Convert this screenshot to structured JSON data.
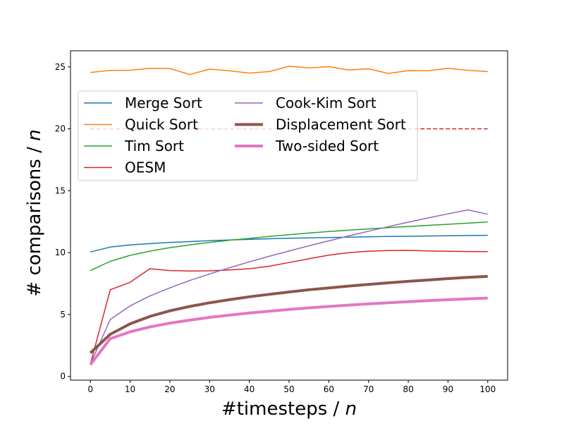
{
  "chart_data": {
    "type": "line",
    "xlabel_prefix": "#timesteps / ",
    "xlabel_var": "n",
    "ylabel_prefix": "# comparisons / ",
    "ylabel_var": "n",
    "xlim": [
      -5,
      105
    ],
    "ylim": [
      -0.3,
      26.3
    ],
    "xticks": [
      0,
      10,
      20,
      30,
      40,
      50,
      60,
      70,
      80,
      90,
      100
    ],
    "yticks": [
      0,
      5,
      10,
      15,
      20,
      25
    ],
    "grid": false,
    "legend_placement": "upper-left",
    "legend_columns": 2,
    "x": [
      0,
      5,
      10,
      15,
      20,
      25,
      30,
      35,
      40,
      45,
      50,
      55,
      60,
      65,
      70,
      75,
      80,
      85,
      90,
      95,
      100
    ],
    "series": [
      {
        "name": "Merge Sort",
        "color": "#1f77b4",
        "width": 1.5,
        "values": [
          10.05,
          10.45,
          10.62,
          10.73,
          10.82,
          10.89,
          10.96,
          11.02,
          11.07,
          11.12,
          11.16,
          11.19,
          11.22,
          11.25,
          11.28,
          11.3,
          11.32,
          11.34,
          11.36,
          11.38,
          11.4
        ]
      },
      {
        "name": "Quick Sort",
        "color": "#ff7f0e",
        "width": 1.5,
        "values": [
          24.55,
          24.72,
          24.73,
          24.88,
          24.87,
          24.38,
          24.82,
          24.68,
          24.5,
          24.62,
          25.05,
          24.92,
          25.02,
          24.75,
          24.85,
          24.47,
          24.7,
          24.68,
          24.88,
          24.72,
          24.62
        ]
      },
      {
        "name": "Tim Sort",
        "color": "#2ca02c",
        "width": 1.5,
        "values": [
          8.55,
          9.3,
          9.78,
          10.12,
          10.4,
          10.62,
          10.82,
          11.0,
          11.15,
          11.3,
          11.45,
          11.58,
          11.7,
          11.81,
          11.92,
          12.02,
          12.11,
          12.2,
          12.29,
          12.38,
          12.47
        ]
      },
      {
        "name": "OESM",
        "color": "#d62728",
        "width": 1.5,
        "values": [
          1.0,
          7.0,
          7.6,
          8.7,
          8.55,
          8.52,
          8.53,
          8.6,
          8.7,
          8.9,
          9.2,
          9.5,
          9.8,
          10.0,
          10.12,
          10.17,
          10.18,
          10.14,
          10.11,
          10.09,
          10.08
        ]
      },
      {
        "name": "Cook-Kim Sort",
        "color": "#9467bd",
        "width": 1.5,
        "values": [
          1.0,
          4.6,
          5.7,
          6.5,
          7.15,
          7.75,
          8.28,
          8.78,
          9.25,
          9.7,
          10.13,
          10.55,
          10.95,
          11.35,
          11.73,
          12.1,
          12.46,
          12.8,
          13.13,
          13.45,
          13.1
        ]
      },
      {
        "name": "Displacement Sort",
        "color": "#8c564b",
        "width": 4,
        "values": [
          1.9,
          3.4,
          4.25,
          4.85,
          5.3,
          5.65,
          5.95,
          6.2,
          6.43,
          6.63,
          6.82,
          7.0,
          7.15,
          7.3,
          7.43,
          7.56,
          7.68,
          7.79,
          7.9,
          8.0,
          8.08
        ]
      },
      {
        "name": "Two-sided Sort",
        "color": "#e377c2",
        "width": 4,
        "values": [
          0.95,
          3.05,
          3.6,
          4.0,
          4.3,
          4.55,
          4.77,
          4.95,
          5.12,
          5.27,
          5.41,
          5.54,
          5.65,
          5.76,
          5.86,
          5.95,
          6.04,
          6.12,
          6.2,
          6.27,
          6.33
        ]
      }
    ],
    "reference_line": {
      "color": "#d62728",
      "y": 20.0,
      "x_start": 0,
      "x_end": 100,
      "style": "dashed"
    }
  }
}
